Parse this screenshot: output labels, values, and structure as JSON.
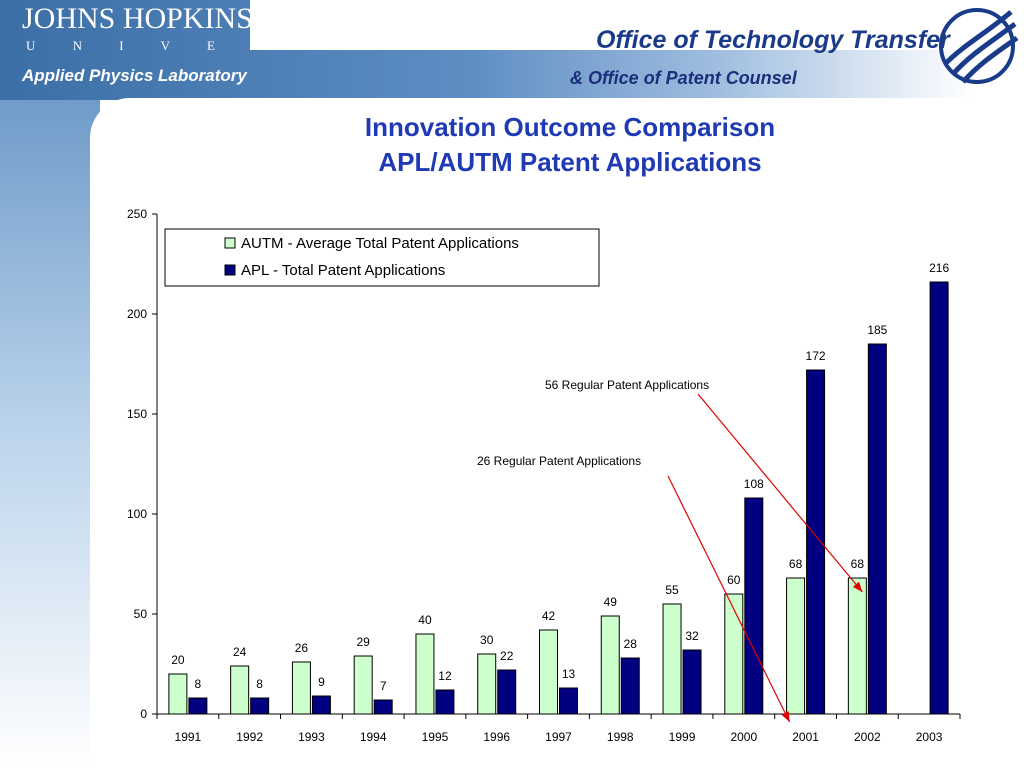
{
  "header": {
    "university_name": "JOHNS HOPKINS",
    "university_word": "U N I V E R S I T Y",
    "lab_name": "Applied Physics Laboratory",
    "office_name": "Office of Technology Transfer",
    "office_sub": "& Office of Patent Counsel"
  },
  "slide": {
    "title_line1": "Innovation Outcome Comparison",
    "title_line2": "APL/AUTM Patent Applications"
  },
  "colors": {
    "title": "#1f3ab4",
    "autm_fill": "#ccffcc",
    "apl_fill": "#000080",
    "arrow": "#e00000"
  },
  "chart_data": {
    "type": "bar",
    "categories": [
      "1991",
      "1992",
      "1993",
      "1994",
      "1995",
      "1996",
      "1997",
      "1998",
      "1999",
      "2000",
      "2001",
      "2002",
      "2003"
    ],
    "series": [
      {
        "name": "AUTM - Average Total Patent Applications",
        "values": [
          20,
          24,
          26,
          29,
          40,
          30,
          42,
          49,
          55,
          60,
          68,
          68,
          null
        ]
      },
      {
        "name": "APL - Total Patent Applications",
        "values": [
          8,
          8,
          9,
          7,
          12,
          22,
          13,
          28,
          32,
          108,
          172,
          185,
          216
        ]
      }
    ],
    "ylim": [
      0,
      250
    ],
    "yticks": [
      0,
      50,
      100,
      150,
      200,
      250
    ],
    "grid": false,
    "legend_position": "top",
    "annotations": [
      {
        "text": "56  Regular Patent Applications",
        "points_to_year": "2002"
      },
      {
        "text": "26 Regular Patent Applications",
        "points_to_year": "2001"
      }
    ]
  }
}
